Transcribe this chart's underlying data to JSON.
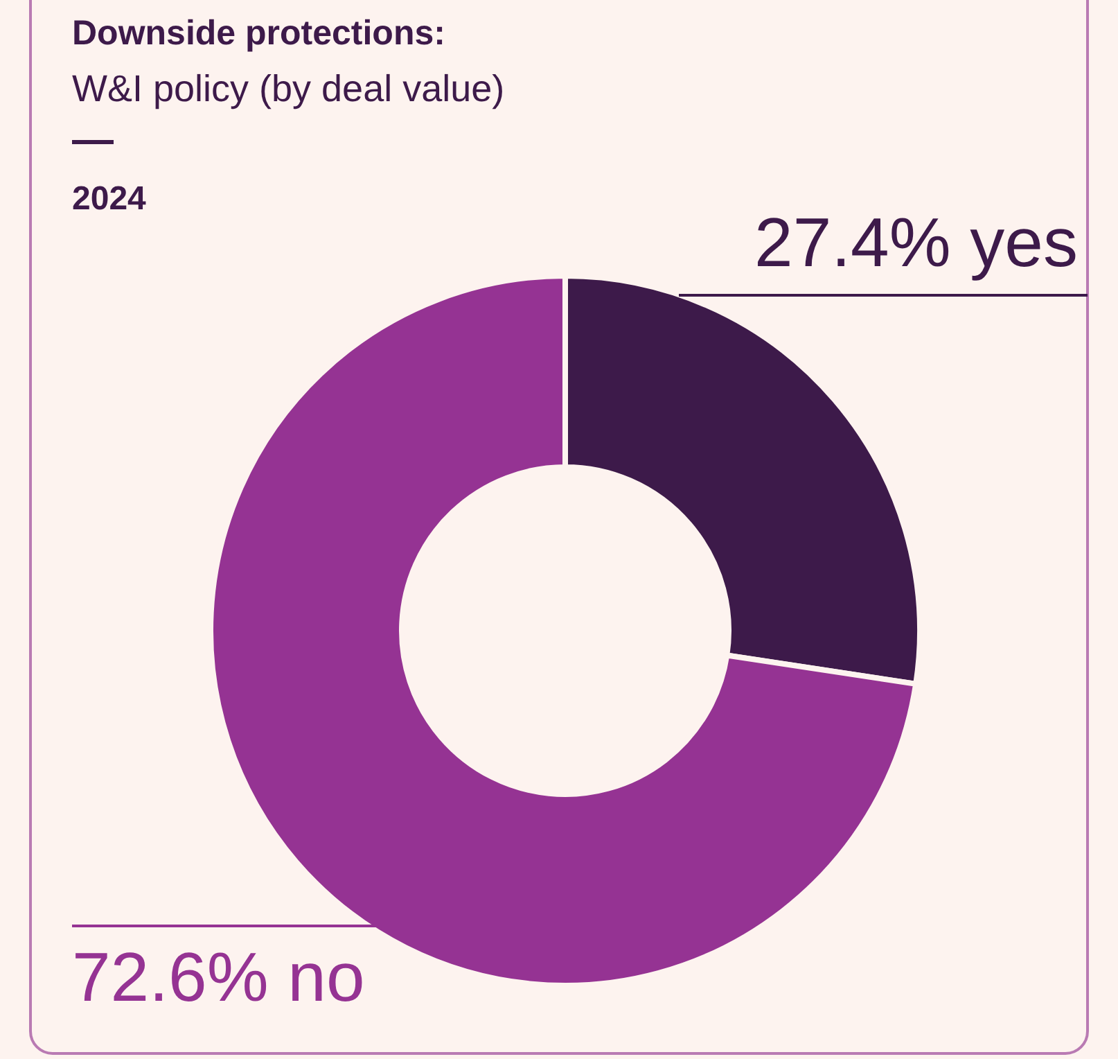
{
  "chart_data": {
    "type": "donut",
    "title": "Downside protections:",
    "subtitle": "W&I policy (by deal value)",
    "annotations": [
      "2024"
    ],
    "categories": [
      "yes",
      "no"
    ],
    "values": [
      27.4,
      72.6
    ],
    "colors": [
      "#3d1a4a",
      "#953393"
    ],
    "value_labels": [
      "27.4%",
      "72.6%"
    ]
  }
}
